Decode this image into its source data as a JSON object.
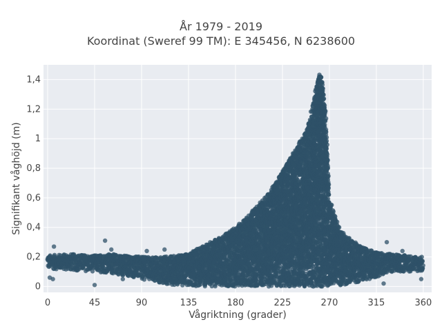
{
  "chart_data": {
    "type": "scatter",
    "title_lines": [
      "År 1979 - 2019",
      "Koordinat (Sweref 99 TM): E 345456, N 6238600"
    ],
    "xlabel": "Vågriktning (grader)",
    "ylabel": "Signifikant våghöjd (m)",
    "xlim": [
      -4,
      368
    ],
    "ylim": [
      -0.04,
      1.5
    ],
    "xticks": [
      0,
      45,
      90,
      135,
      180,
      225,
      270,
      315,
      360
    ],
    "xtick_labels": [
      "0",
      "45",
      "90",
      "135",
      "180",
      "225",
      "270",
      "315",
      "360"
    ],
    "yticks": [
      0,
      0.2,
      0.4,
      0.6,
      0.8,
      1,
      1.2,
      1.4
    ],
    "ytick_labels": [
      "0",
      "0,2",
      "0,4",
      "0,6",
      "0,8",
      "1",
      "1,2",
      "1,4"
    ],
    "grid": true,
    "marker_color": "#2f5168",
    "plot_background": "#e9ecf1",
    "envelope_description_points": {
      "direction": [
        0,
        20,
        45,
        60,
        90,
        110,
        135,
        150,
        165,
        180,
        195,
        210,
        220,
        230,
        240,
        248,
        255,
        260,
        263,
        266,
        270,
        280,
        290,
        300,
        315,
        330,
        345,
        360
      ],
      "max_height": [
        0.21,
        0.22,
        0.21,
        0.22,
        0.2,
        0.2,
        0.22,
        0.28,
        0.33,
        0.4,
        0.5,
        0.62,
        0.72,
        0.84,
        0.96,
        1.05,
        1.26,
        1.44,
        1.42,
        1.2,
        0.6,
        0.38,
        0.32,
        0.27,
        0.23,
        0.22,
        0.21,
        0.2
      ],
      "min_height": [
        0.12,
        0.11,
        0.1,
        0.09,
        0.05,
        0.02,
        0.0,
        0.0,
        0.0,
        0.0,
        0.0,
        0.0,
        0.0,
        0.0,
        0.0,
        0.0,
        0.0,
        0.0,
        0.0,
        0.0,
        0.0,
        0.0,
        0.02,
        0.03,
        0.06,
        0.1,
        0.1,
        0.1
      ]
    },
    "outliers": [
      {
        "x": 2,
        "y": 0.06
      },
      {
        "x": 5,
        "y": 0.05
      },
      {
        "x": 6,
        "y": 0.27
      },
      {
        "x": 55,
        "y": 0.31
      },
      {
        "x": 61,
        "y": 0.25
      },
      {
        "x": 45,
        "y": 0.01
      },
      {
        "x": 72,
        "y": 0.05
      },
      {
        "x": 95,
        "y": 0.24
      },
      {
        "x": 112,
        "y": 0.25
      },
      {
        "x": 325,
        "y": 0.3
      },
      {
        "x": 322,
        "y": 0.02
      },
      {
        "x": 340,
        "y": 0.24
      },
      {
        "x": 358,
        "y": 0.05
      },
      {
        "x": 250,
        "y": 1.1
      },
      {
        "x": 236,
        "y": 0.82
      }
    ]
  }
}
